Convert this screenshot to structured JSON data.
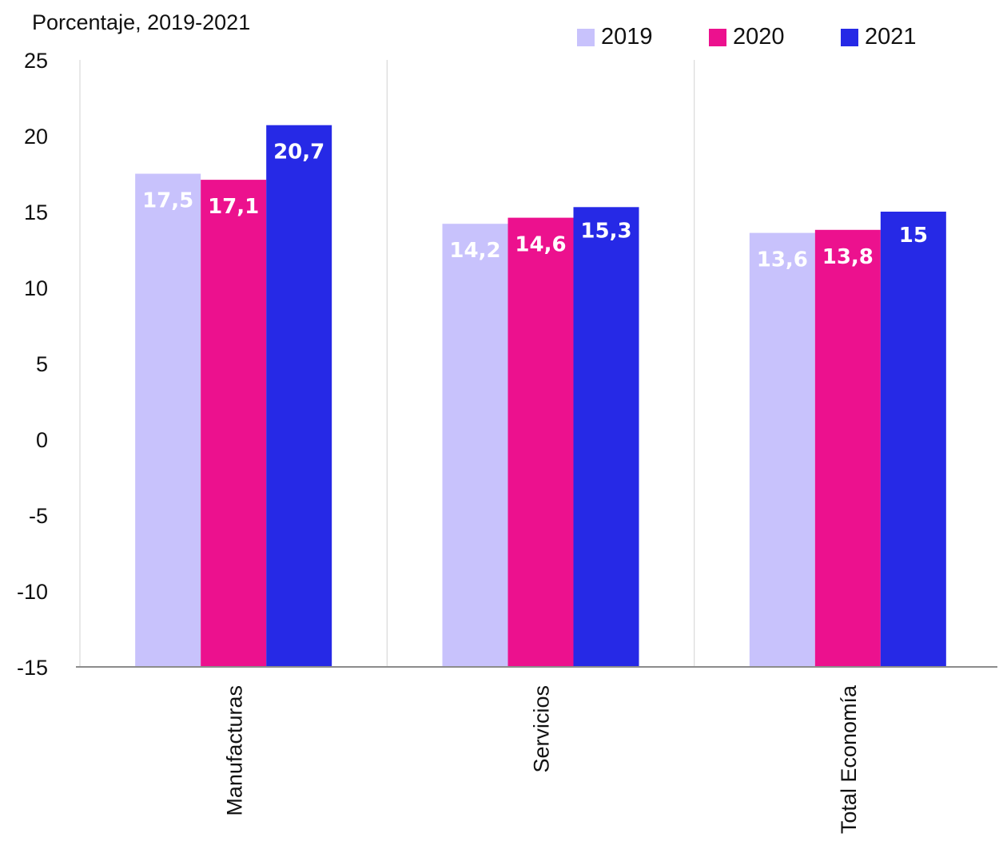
{
  "chart_data": {
    "type": "bar",
    "title": "",
    "ylabel": "Porcentaje, 2019-2021",
    "xlabel": "",
    "ylim": [
      -15,
      25
    ],
    "yticks": [
      25,
      20,
      15,
      10,
      5,
      0,
      -5,
      -10,
      -15
    ],
    "categories": [
      "Manufacturas",
      "Servicios",
      "Total Economía"
    ],
    "series": [
      {
        "name": "2019",
        "color": "#c8c2fc",
        "values": [
          17.5,
          14.2,
          13.6
        ],
        "labels": [
          "17,5",
          "14,2",
          "13,6"
        ]
      },
      {
        "name": "2020",
        "color": "#ec118e",
        "values": [
          17.1,
          14.6,
          13.8
        ],
        "labels": [
          "17,1",
          "14,6",
          "13,8"
        ]
      },
      {
        "name": "2021",
        "color": "#2629e6",
        "values": [
          20.7,
          15.3,
          15.0
        ],
        "labels": [
          "20,7",
          "15,3",
          "15"
        ]
      }
    ],
    "legend_position": "top-right",
    "grid": "vertical separators between categories"
  }
}
